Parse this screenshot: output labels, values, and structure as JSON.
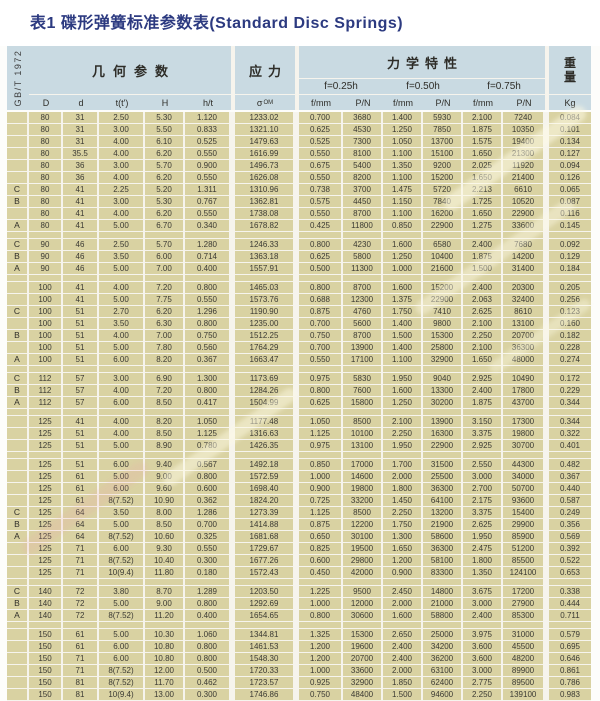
{
  "page": {
    "title": "表1 碟形弹簧标准参数表(Standard Disc Springs)",
    "standard_label": "GB/T 1972"
  },
  "header": {
    "geometry": "几何参数",
    "stress": "应力",
    "mechanical": "力学特性",
    "weight_line1": "重",
    "weight_line2": "量",
    "deflection_025": "f=0.25h",
    "deflection_050": "f=0.50h",
    "deflection_075": "f=0.75h",
    "columns": {
      "D": "D",
      "d": "d",
      "t": "t(t')",
      "H": "H",
      "ht": "h/t",
      "sigma": "σ",
      "sigma_sub": "OM",
      "f": "f/mm",
      "P": "P/N",
      "kg": "Kg"
    }
  },
  "colors": {
    "title_text": "#2c3a80",
    "header_bg": "#c9dae2",
    "cell_bg": "#d9d2a2",
    "gridline": "#f6f4ed"
  },
  "table": {
    "groups": [
      {
        "rows": [
          [
            "",
            "80",
            "31",
            "2.50",
            "5.30",
            "1.120",
            "1233.02",
            "0.700",
            "3680",
            "1.400",
            "5930",
            "2.100",
            "7240",
            "0.084"
          ],
          [
            "",
            "80",
            "31",
            "3.00",
            "5.50",
            "0.833",
            "1321.10",
            "0.625",
            "4530",
            "1.250",
            "7850",
            "1.875",
            "10350",
            "0.101"
          ],
          [
            "",
            "80",
            "31",
            "4.00",
            "6.10",
            "0.525",
            "1479.63",
            "0.525",
            "7300",
            "1.050",
            "13700",
            "1.575",
            "19400",
            "0.134"
          ],
          [
            "",
            "80",
            "35.5",
            "4.00",
            "6.20",
            "0.550",
            "1616.99",
            "0.550",
            "8100",
            "1.100",
            "15100",
            "1.650",
            "21300",
            "0.127"
          ],
          [
            "",
            "80",
            "36",
            "3.00",
            "5.70",
            "0.900",
            "1496.73",
            "0.675",
            "5400",
            "1.350",
            "9200",
            "2.025",
            "11920",
            "0.094"
          ],
          [
            "",
            "80",
            "36",
            "4.00",
            "6.20",
            "0.550",
            "1626.08",
            "0.550",
            "8200",
            "1.100",
            "15200",
            "1.650",
            "21400",
            "0.126"
          ],
          [
            "C",
            "80",
            "41",
            "2.25",
            "5.20",
            "1.311",
            "1310.96",
            "0.738",
            "3700",
            "1.475",
            "5720",
            "2.213",
            "6610",
            "0.065"
          ],
          [
            "B",
            "80",
            "41",
            "3.00",
            "5.30",
            "0.767",
            "1362.81",
            "0.575",
            "4450",
            "1.150",
            "7840",
            "1.725",
            "10520",
            "0.087"
          ],
          [
            "",
            "80",
            "41",
            "4.00",
            "6.20",
            "0.550",
            "1738.08",
            "0.550",
            "8700",
            "1.100",
            "16200",
            "1.650",
            "22900",
            "0.116"
          ],
          [
            "A",
            "80",
            "41",
            "5.00",
            "6.70",
            "0.340",
            "1678.82",
            "0.425",
            "11800",
            "0.850",
            "22900",
            "1.275",
            "33600",
            "0.145"
          ]
        ]
      },
      {
        "rows": [
          [
            "C",
            "90",
            "46",
            "2.50",
            "5.70",
            "1.280",
            "1246.33",
            "0.800",
            "4230",
            "1.600",
            "6580",
            "2.400",
            "7680",
            "0.092"
          ],
          [
            "B",
            "90",
            "46",
            "3.50",
            "6.00",
            "0.714",
            "1363.18",
            "0.625",
            "5800",
            "1.250",
            "10400",
            "1.875",
            "14200",
            "0.129"
          ],
          [
            "A",
            "90",
            "46",
            "5.00",
            "7.00",
            "0.400",
            "1557.91",
            "0.500",
            "11300",
            "1.000",
            "21600",
            "1.500",
            "31400",
            "0.184"
          ]
        ]
      },
      {
        "rows": [
          [
            "",
            "100",
            "41",
            "4.00",
            "7.20",
            "0.800",
            "1465.03",
            "0.800",
            "8700",
            "1.600",
            "15200",
            "2.400",
            "20300",
            "0.205"
          ],
          [
            "",
            "100",
            "41",
            "5.00",
            "7.75",
            "0.550",
            "1573.76",
            "0.688",
            "12300",
            "1.375",
            "22900",
            "2.063",
            "32400",
            "0.256"
          ],
          [
            "C",
            "100",
            "51",
            "2.70",
            "6.20",
            "1.296",
            "1190.90",
            "0.875",
            "4760",
            "1.750",
            "7410",
            "2.625",
            "8610",
            "0.123"
          ],
          [
            "",
            "100",
            "51",
            "3.50",
            "6.30",
            "0.800",
            "1235.00",
            "0.700",
            "5600",
            "1.400",
            "9800",
            "2.100",
            "13100",
            "0.160"
          ],
          [
            "B",
            "100",
            "51",
            "4.00",
            "7.00",
            "0.750",
            "1512.25",
            "0.750",
            "8700",
            "1.500",
            "15300",
            "2.250",
            "20700",
            "0.182"
          ],
          [
            "",
            "100",
            "51",
            "5.00",
            "7.80",
            "0.560",
            "1764.29",
            "0.700",
            "13900",
            "1.400",
            "25800",
            "2.100",
            "36300",
            "0.228"
          ],
          [
            "A",
            "100",
            "51",
            "6.00",
            "8.20",
            "0.367",
            "1663.47",
            "0.550",
            "17100",
            "1.100",
            "32900",
            "1.650",
            "48000",
            "0.274"
          ]
        ]
      },
      {
        "rows": [
          [
            "C",
            "112",
            "57",
            "3.00",
            "6.90",
            "1.300",
            "1173.69",
            "0.975",
            "5830",
            "1.950",
            "9040",
            "2.925",
            "10490",
            "0.172"
          ],
          [
            "B",
            "112",
            "57",
            "4.00",
            "7.20",
            "0.800",
            "1284.26",
            "0.800",
            "7600",
            "1.600",
            "13300",
            "2.400",
            "17800",
            "0.229"
          ],
          [
            "A",
            "112",
            "57",
            "6.00",
            "8.50",
            "0.417",
            "1504.99",
            "0.625",
            "15800",
            "1.250",
            "30200",
            "1.875",
            "43700",
            "0.344"
          ]
        ]
      },
      {
        "rows": [
          [
            "",
            "125",
            "41",
            "4.00",
            "8.20",
            "1.050",
            "1177.48",
            "1.050",
            "8500",
            "2.100",
            "13900",
            "3.150",
            "17300",
            "0.344"
          ],
          [
            "",
            "125",
            "51",
            "4.00",
            "8.50",
            "1.125",
            "1316.63",
            "1.125",
            "10100",
            "2.250",
            "16300",
            "3.375",
            "19800",
            "0.322"
          ],
          [
            "",
            "125",
            "51",
            "5.00",
            "8.90",
            "0.780",
            "1426.35",
            "0.975",
            "13100",
            "1.950",
            "22900",
            "2.925",
            "30700",
            "0.401"
          ]
        ]
      },
      {
        "rows": [
          [
            "",
            "125",
            "51",
            "6.00",
            "9.40",
            "0.567",
            "1492.18",
            "0.850",
            "17000",
            "1.700",
            "31500",
            "2.550",
            "44300",
            "0.482"
          ],
          [
            "",
            "125",
            "61",
            "5.00",
            "9.00",
            "0.800",
            "1572.59",
            "1.000",
            "14600",
            "2.000",
            "25500",
            "3.000",
            "34000",
            "0.367"
          ],
          [
            "",
            "125",
            "61",
            "6.00",
            "9.60",
            "0.600",
            "1698.40",
            "0.900",
            "19800",
            "1.800",
            "36300",
            "2.700",
            "50700",
            "0.440"
          ],
          [
            "",
            "125",
            "61",
            "8(7.52)",
            "10.90",
            "0.362",
            "1824.20",
            "0.725",
            "33200",
            "1.450",
            "64100",
            "2.175",
            "93600",
            "0.587"
          ],
          [
            "C",
            "125",
            "64",
            "3.50",
            "8.00",
            "1.286",
            "1273.39",
            "1.125",
            "8500",
            "2.250",
            "13200",
            "3.375",
            "15400",
            "0.249"
          ],
          [
            "B",
            "125",
            "64",
            "5.00",
            "8.50",
            "0.700",
            "1414.88",
            "0.875",
            "12200",
            "1.750",
            "21900",
            "2.625",
            "29900",
            "0.356"
          ],
          [
            "A",
            "125",
            "64",
            "8(7.52)",
            "10.60",
            "0.325",
            "1681.68",
            "0.650",
            "30100",
            "1.300",
            "58600",
            "1.950",
            "85900",
            "0.569"
          ],
          [
            "",
            "125",
            "71",
            "6.00",
            "9.30",
            "0.550",
            "1729.67",
            "0.825",
            "19500",
            "1.650",
            "36300",
            "2.475",
            "51200",
            "0.392"
          ],
          [
            "",
            "125",
            "71",
            "8(7.52)",
            "10.40",
            "0.300",
            "1677.26",
            "0.600",
            "29800",
            "1.200",
            "58100",
            "1.800",
            "85500",
            "0.522"
          ],
          [
            "",
            "125",
            "71",
            "10(9.4)",
            "11.80",
            "0.180",
            "1572.43",
            "0.450",
            "42000",
            "0.900",
            "83300",
            "1.350",
            "124100",
            "0.653"
          ]
        ]
      },
      {
        "rows": [
          [
            "C",
            "140",
            "72",
            "3.80",
            "8.70",
            "1.289",
            "1203.50",
            "1.225",
            "9500",
            "2.450",
            "14800",
            "3.675",
            "17200",
            "0.338"
          ],
          [
            "B",
            "140",
            "72",
            "5.00",
            "9.00",
            "0.800",
            "1292.69",
            "1.000",
            "12000",
            "2.000",
            "21000",
            "3.000",
            "27900",
            "0.444"
          ],
          [
            "A",
            "140",
            "72",
            "8(7.52)",
            "11.20",
            "0.400",
            "1654.65",
            "0.800",
            "30600",
            "1.600",
            "58800",
            "2.400",
            "85300",
            "0.711"
          ]
        ]
      },
      {
        "rows": [
          [
            "",
            "150",
            "61",
            "5.00",
            "10.30",
            "1.060",
            "1344.81",
            "1.325",
            "15300",
            "2.650",
            "25000",
            "3.975",
            "31000",
            "0.579"
          ],
          [
            "",
            "150",
            "61",
            "6.00",
            "10.80",
            "0.800",
            "1461.53",
            "1.200",
            "19600",
            "2.400",
            "34200",
            "3.600",
            "45500",
            "0.695"
          ],
          [
            "",
            "150",
            "71",
            "6.00",
            "10.80",
            "0.800",
            "1548.30",
            "1.200",
            "20700",
            "2.400",
            "36200",
            "3.600",
            "48200",
            "0.646"
          ],
          [
            "",
            "150",
            "71",
            "8(7.52)",
            "12.00",
            "0.500",
            "1720.33",
            "1.000",
            "33600",
            "2.000",
            "63100",
            "3.000",
            "89900",
            "0.861"
          ],
          [
            "",
            "150",
            "81",
            "8(7.52)",
            "11.70",
            "0.462",
            "1723.57",
            "0.925",
            "32900",
            "1.850",
            "62400",
            "2.775",
            "89500",
            "0.786"
          ],
          [
            "",
            "150",
            "81",
            "10(9.4)",
            "13.00",
            "0.300",
            "1746.86",
            "0.750",
            "48400",
            "1.500",
            "94600",
            "2.250",
            "139100",
            "0.983"
          ]
        ]
      }
    ]
  }
}
